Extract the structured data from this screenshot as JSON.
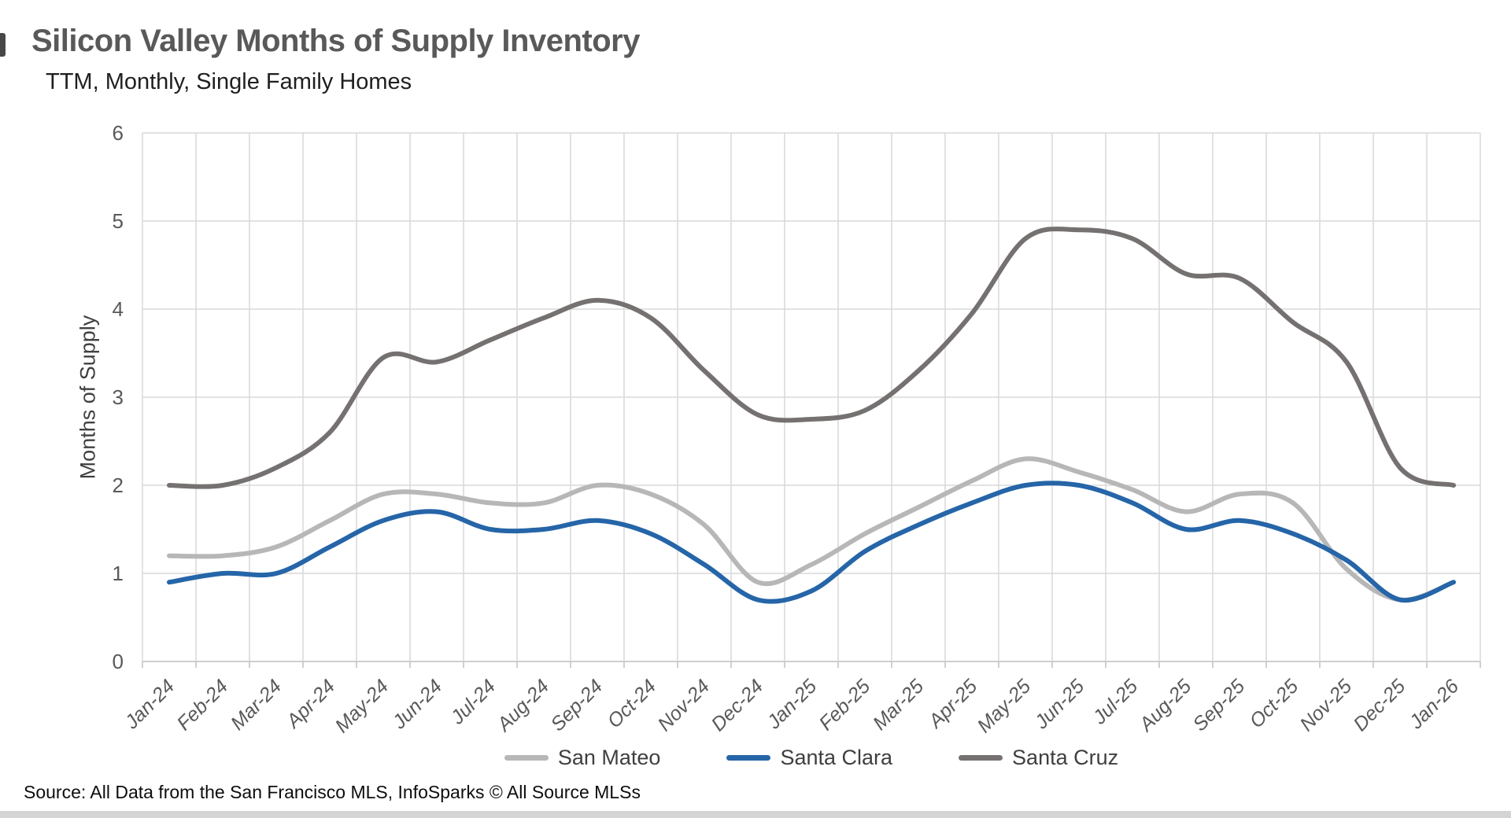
{
  "header": {
    "title": "Silicon Valley Months of Supply Inventory",
    "subtitle": "TTM, Monthly, Single Family Homes"
  },
  "footer": {
    "source": "Source: All Data from the San Francisco MLS, InfoSparks © All Source MLSs"
  },
  "chart_data": {
    "type": "line",
    "title": "Silicon Valley Months of Supply Inventory",
    "subtitle": "TTM, Monthly, Single Family Homes",
    "ylabel": "Months of Supply",
    "xlabel": "",
    "ylim": [
      0,
      6
    ],
    "yticks": [
      0,
      1,
      2,
      3,
      4,
      5,
      6
    ],
    "grid": true,
    "line_style": "smooth",
    "legend_position": "bottom",
    "categories": [
      "Jan-24",
      "Feb-24",
      "Mar-24",
      "Apr-24",
      "May-24",
      "Jun-24",
      "Jul-24",
      "Aug-24",
      "Sep-24",
      "Oct-24",
      "Nov-24",
      "Dec-24",
      "Jan-25",
      "Feb-25",
      "Mar-25",
      "Apr-25",
      "May-25",
      "Jun-25",
      "Jul-25",
      "Aug-25",
      "Sep-25",
      "Oct-25",
      "Nov-25",
      "Dec-25",
      "Jan-26"
    ],
    "series": [
      {
        "name": "San Mateo",
        "color": "#b7b7b7",
        "values": [
          1.2,
          1.2,
          1.3,
          1.6,
          1.9,
          1.9,
          1.8,
          1.8,
          2.0,
          1.9,
          1.55,
          0.9,
          1.1,
          1.45,
          1.75,
          2.05,
          2.3,
          2.15,
          1.95,
          1.7,
          1.9,
          1.8,
          1.05,
          0.7,
          0.9
        ]
      },
      {
        "name": "Santa Clara",
        "color": "#2565a8",
        "values": [
          0.9,
          1.0,
          1.0,
          1.3,
          1.6,
          1.7,
          1.5,
          1.5,
          1.6,
          1.45,
          1.1,
          0.7,
          0.8,
          1.25,
          1.55,
          1.8,
          2.0,
          2.0,
          1.8,
          1.5,
          1.6,
          1.45,
          1.15,
          0.7,
          0.9
        ]
      },
      {
        "name": "Santa Cruz",
        "color": "#767171",
        "values": [
          2.0,
          2.0,
          2.2,
          2.6,
          3.45,
          3.4,
          3.65,
          3.9,
          4.1,
          3.9,
          3.3,
          2.8,
          2.75,
          2.85,
          3.3,
          3.95,
          4.8,
          4.9,
          4.8,
          4.4,
          4.35,
          3.85,
          3.4,
          2.2,
          2.0
        ]
      }
    ],
    "colors": {
      "gridline": "#d9d9d9",
      "axis_line": "#bfbfbf",
      "title": "#595959",
      "tick_label": "#595959"
    }
  }
}
